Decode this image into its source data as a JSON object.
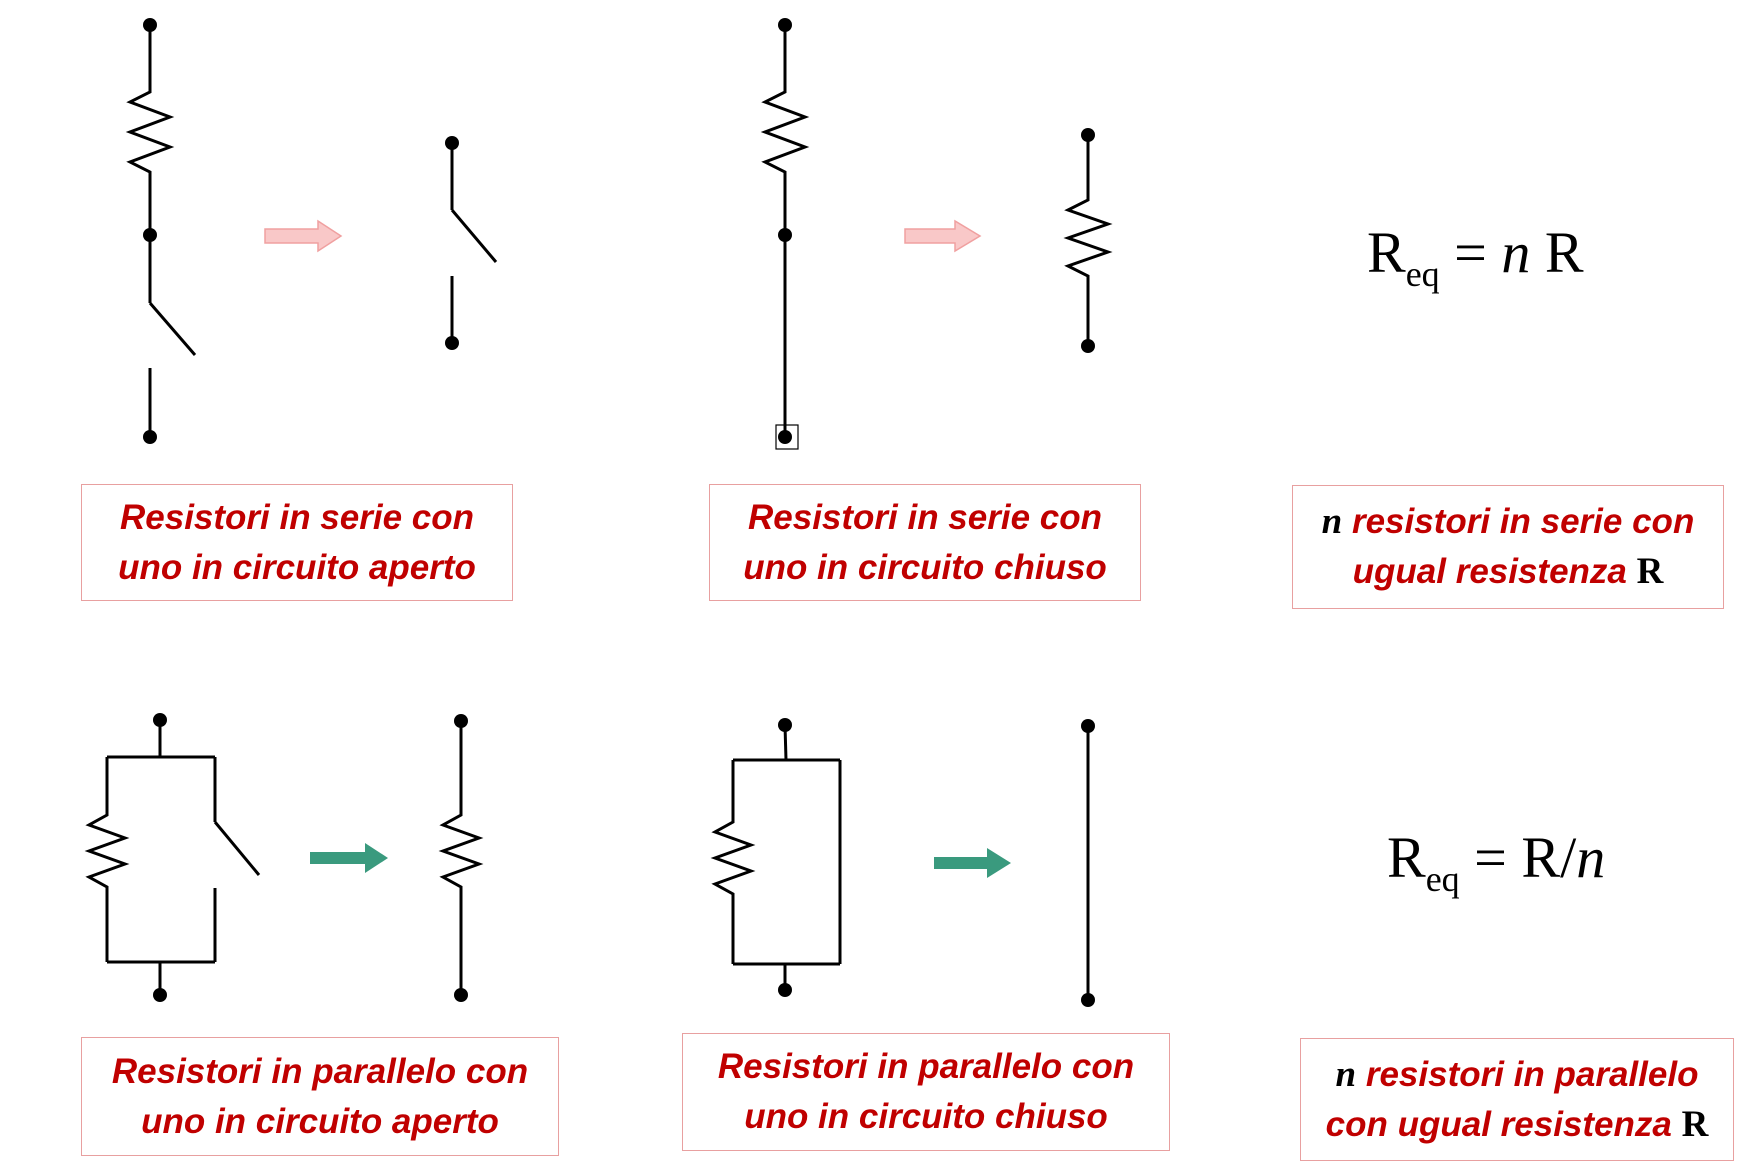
{
  "captions": {
    "series_open": {
      "line1": "Resistori in serie con",
      "line2": "uno in circuito aperto"
    },
    "series_closed": {
      "line1": "Resistori in serie con",
      "line2": "uno in circuito chiuso"
    },
    "series_n": {
      "n": "n",
      "line1_rest": " resistori in serie con",
      "line2": "ugual resistenza ",
      "r": "R"
    },
    "parallel_open": {
      "line1": "Resistori in parallelo con",
      "line2": "uno in circuito aperto"
    },
    "parallel_closed": {
      "line1": "Resistori in parallelo con",
      "line2": "uno in circuito chiuso"
    },
    "parallel_n": {
      "n": "n",
      "line1_rest": " resistori in parallelo",
      "line2": "con ugual resistenza ",
      "r": "R"
    }
  },
  "formulas": {
    "series": {
      "r": "R",
      "sub": "eq",
      "eq": " = ",
      "n": "n",
      "rest": " R"
    },
    "parallel": {
      "r": "R",
      "sub": "eq",
      "eq": " = R/",
      "n": "n"
    }
  },
  "colors": {
    "wire": "#000000",
    "caption_text": "#c00000",
    "caption_border": "#e8a0a0",
    "arrow_series": "#f9c8c8",
    "arrow_series_stroke": "#f0a0a0",
    "arrow_parallel": "#3a9a7e"
  }
}
